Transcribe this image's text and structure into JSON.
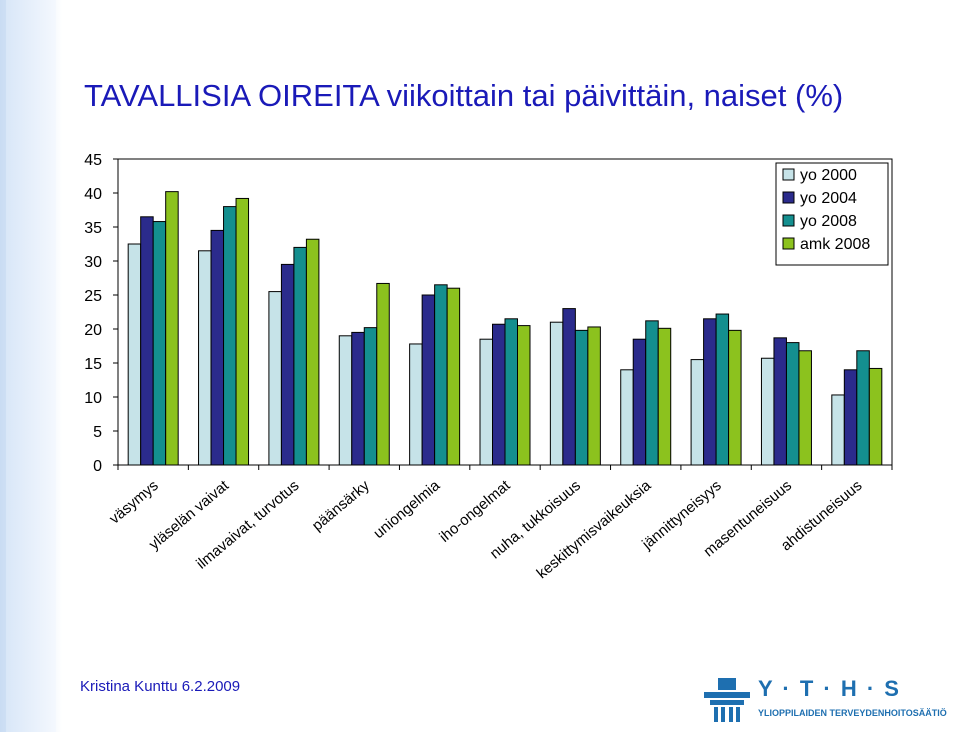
{
  "title": "TAVALLISIA OIREITA viikoittain tai päivittäin, naiset (%)",
  "author": "Kristina Kunttu 6.2.2009",
  "logo": {
    "letters": "Y · T · H · S",
    "subtitle": "YLIOPPILAIDEN TERVEYDENHOITOSÄÄTIÖ"
  },
  "chart_data": {
    "type": "bar",
    "categories": [
      "väsymys",
      "yläselän vaivat",
      "ilmavaivat, turvotus",
      "päänsärky",
      "uniongelmia",
      "iho-ongelmat",
      "nuha, tukkoisuus",
      "keskittymisvaikeuksia",
      "jännittyneisyys",
      "masentuneisuus",
      "ahdistuneisuus"
    ],
    "series": [
      {
        "name": "yo 2000",
        "color": "#c6e3e8",
        "values": [
          32.5,
          31.5,
          25.5,
          19,
          17.8,
          18.5,
          21,
          14,
          15.5,
          15.7,
          10.3
        ]
      },
      {
        "name": "yo 2004",
        "color": "#2b2b8c",
        "values": [
          36.5,
          34.5,
          29.5,
          19.5,
          25,
          20.7,
          23,
          18.5,
          21.5,
          18.7,
          14
        ]
      },
      {
        "name": "yo 2008",
        "color": "#148f8f",
        "values": [
          35.8,
          38,
          32,
          20.2,
          26.5,
          21.5,
          19.8,
          21.2,
          22.2,
          18,
          16.8
        ]
      },
      {
        "name": "amk 2008",
        "color": "#8cc21e",
        "values": [
          40.2,
          39.2,
          33.2,
          26.7,
          26,
          20.5,
          20.3,
          20.1,
          19.8,
          16.8,
          14.2
        ]
      }
    ],
    "ylim": [
      0,
      45
    ],
    "yticks": [
      0,
      5,
      10,
      15,
      20,
      25,
      30,
      35,
      40,
      45
    ],
    "grid": false,
    "legend_position": "top-right"
  }
}
